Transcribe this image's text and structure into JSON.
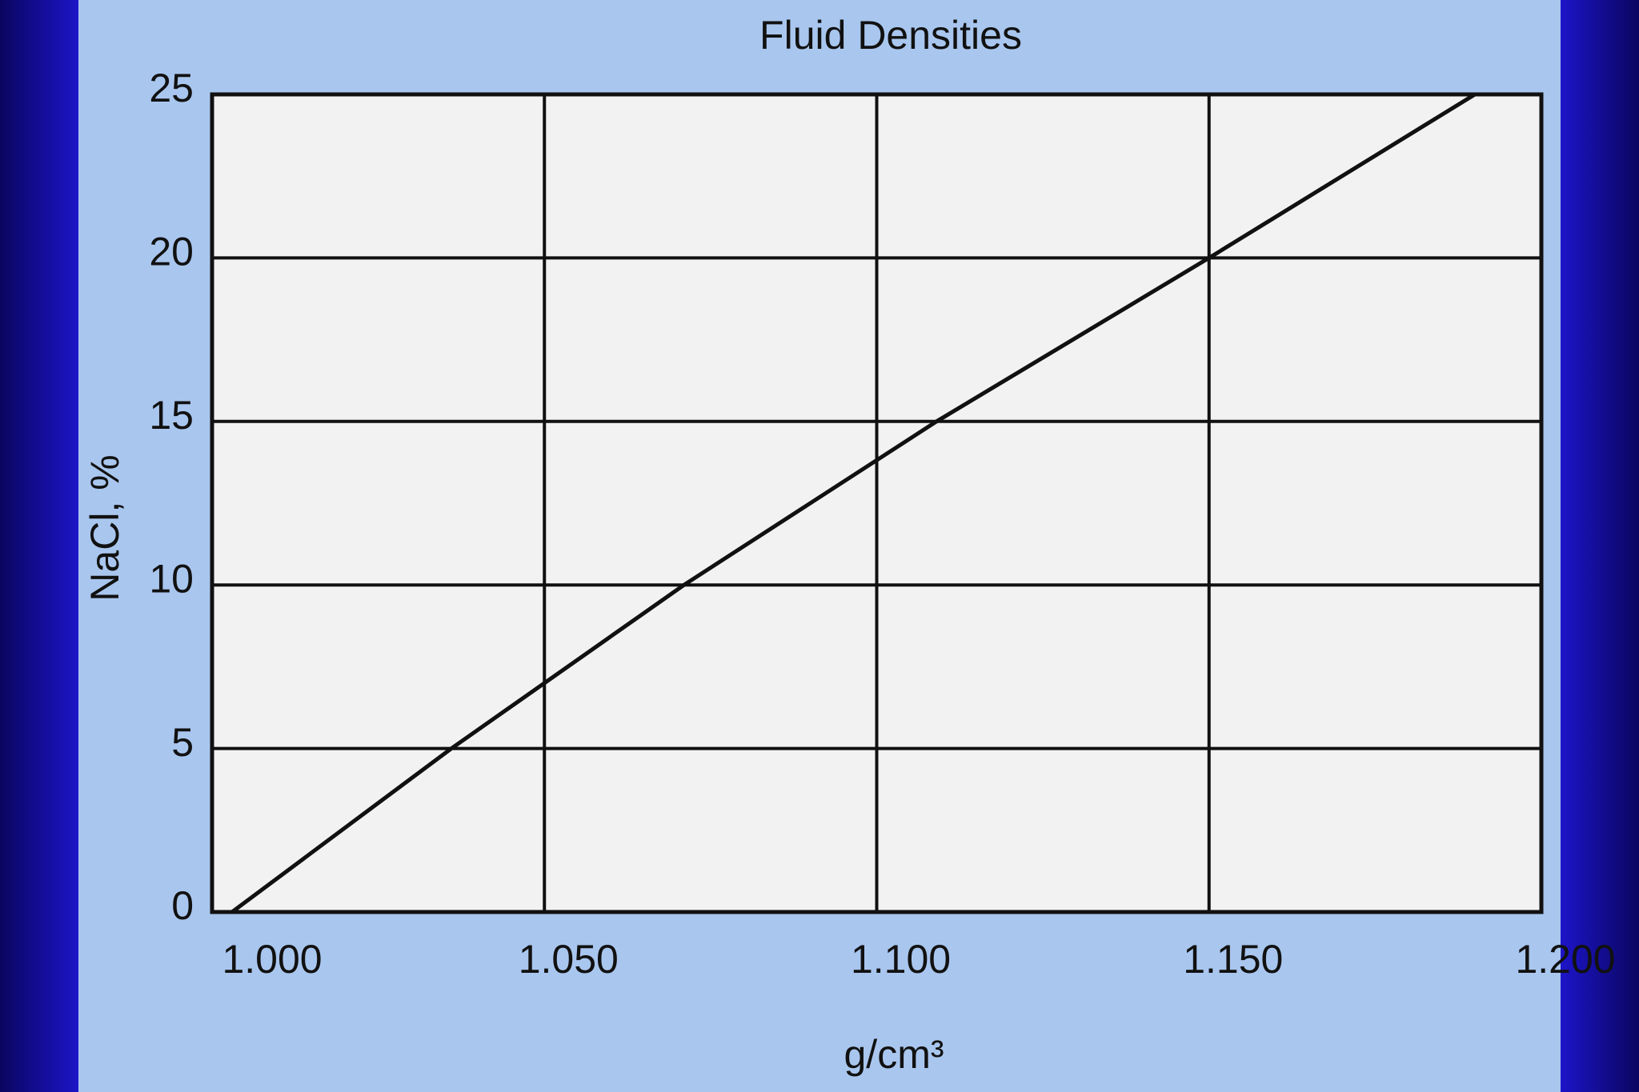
{
  "chart_data": {
    "type": "line",
    "title": "Fluid Densities",
    "x_label": "g/cm³",
    "y_label": "NaCl, %",
    "x": [
      1.003,
      1.036,
      1.071,
      1.109,
      1.15,
      1.19
    ],
    "series": [
      {
        "name": "NaCl",
        "color": "#111111",
        "values": [
          0,
          5,
          10,
          15,
          20,
          25
        ]
      }
    ],
    "xlim": [
      1.0,
      1.2
    ],
    "xticks": [
      {
        "value": 1.0,
        "label": "1.000"
      },
      {
        "value": 1.05,
        "label": "1.050"
      },
      {
        "value": 1.1,
        "label": "1.100"
      },
      {
        "value": 1.15,
        "label": "1.150"
      },
      {
        "value": 1.2,
        "label": "1.200"
      }
    ],
    "ylim": [
      0,
      25
    ],
    "yticks": [
      0,
      5,
      10,
      15,
      20,
      25
    ],
    "grid": true
  }
}
